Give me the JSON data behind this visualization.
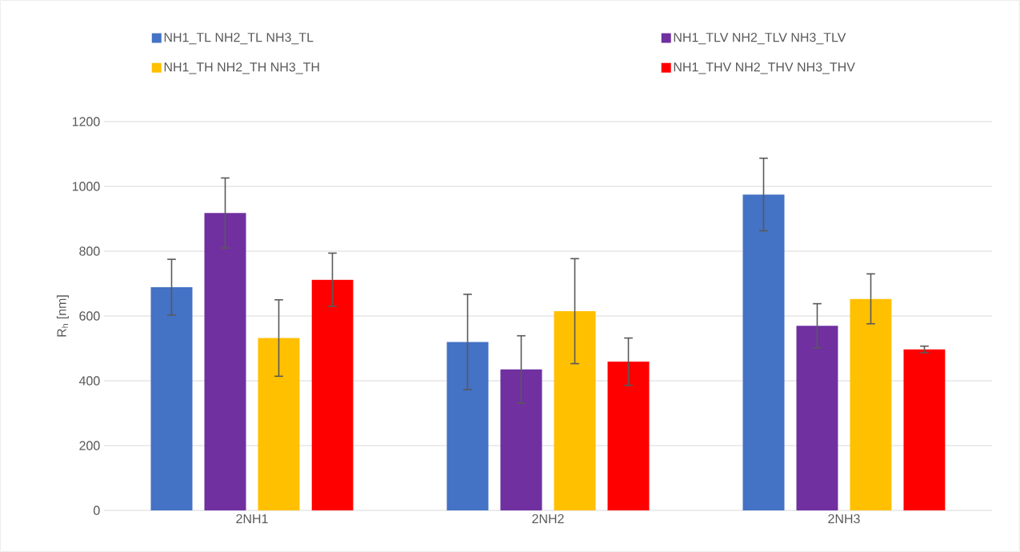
{
  "chart_data": {
    "type": "bar",
    "ylabel": "R$_{h}$ [nm]",
    "categories": [
      "2NH1",
      "2NH2",
      "2NH3"
    ],
    "series": [
      {
        "name": "NH1_TL NH2_TL NH3_TL",
        "color": "#4472c4",
        "values": [
          689,
          520,
          975
        ],
        "errors": [
          86,
          147,
          112
        ]
      },
      {
        "name": "NH1_TLV NH2_TLV NH3_TLV",
        "color": "#7030a0",
        "values": [
          918,
          435,
          570
        ],
        "errors": [
          108,
          104,
          68
        ]
      },
      {
        "name": "NH1_TH NH2_TH NH3_TH",
        "color": "#ffc000",
        "values": [
          532,
          615,
          653
        ],
        "errors": [
          118,
          162,
          77
        ]
      },
      {
        "name": "NH1_THV NH2_THV NH3_THV",
        "color": "#ff0000",
        "values": [
          712,
          459,
          497
        ],
        "errors": [
          82,
          73,
          10
        ]
      }
    ],
    "ylim": [
      0,
      1200
    ],
    "yticks": [
      0,
      200,
      400,
      600,
      800,
      1000,
      1200
    ],
    "grid": "y",
    "legend": "top"
  }
}
